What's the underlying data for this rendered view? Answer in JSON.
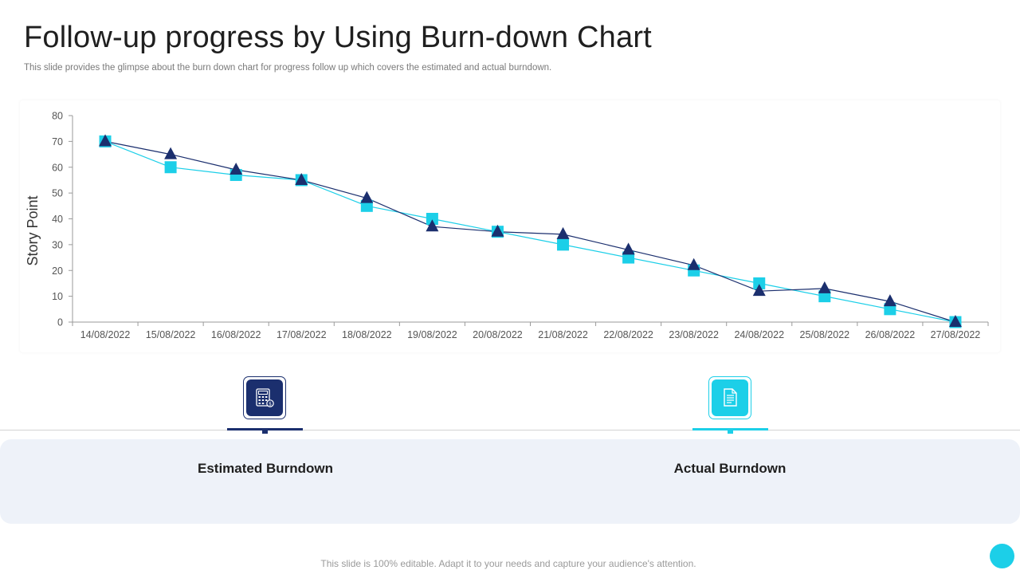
{
  "page": {
    "title": "Follow-up progress by Using Burn-down Chart",
    "subtitle": "This slide provides the glimpse about the burn down chart for progress follow up which covers the estimated and actual burndown.",
    "footer": "This slide is 100% editable. Adapt it to your needs and capture your audience's attention."
  },
  "colors": {
    "navy": "#1b2f6e",
    "cyan": "#1ccfe8",
    "axis": "#9a9a9a",
    "panel": "#eef2f9"
  },
  "legend": {
    "estimated": {
      "label": "Estimated Burndown",
      "icon": "calculator-icon"
    },
    "actual": {
      "label": "Actual Burndown",
      "icon": "document-icon"
    }
  },
  "chart_data": {
    "type": "line",
    "title": "",
    "xlabel": "",
    "ylabel": "Story Point",
    "ylim": [
      0,
      80
    ],
    "yticks": [
      0,
      10,
      20,
      30,
      40,
      50,
      60,
      70,
      80
    ],
    "grid": false,
    "legend_position": "below",
    "categories": [
      "14/08/2022",
      "15/08/2022",
      "16/08/2022",
      "17/08/2022",
      "18/08/2022",
      "19/08/2022",
      "20/08/2022",
      "21/08/2022",
      "22/08/2022",
      "23/08/2022",
      "24/08/2022",
      "25/08/2022",
      "26/08/2022",
      "27/08/2022"
    ],
    "series": [
      {
        "name": "Estimated Burndown",
        "marker": "triangle",
        "color": "#1b2f6e",
        "values": [
          70,
          65,
          59,
          55,
          48,
          37,
          35,
          34,
          28,
          22,
          12,
          13,
          8,
          0
        ]
      },
      {
        "name": "Actual Burndown",
        "marker": "square",
        "color": "#1ccfe8",
        "values": [
          70,
          60,
          57,
          55,
          45,
          40,
          35,
          30,
          25,
          20,
          15,
          10,
          5,
          0
        ]
      }
    ]
  }
}
